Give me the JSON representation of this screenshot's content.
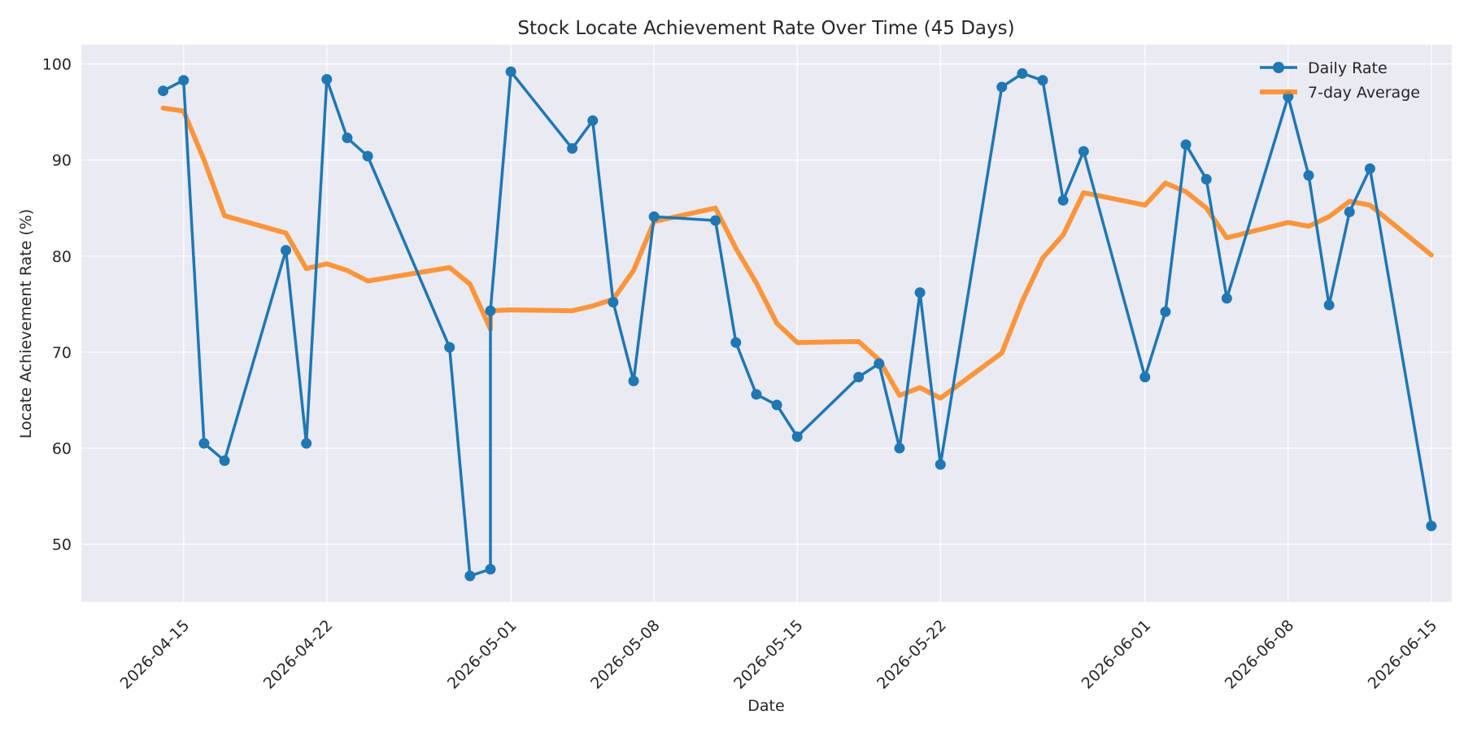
{
  "chart_data": {
    "type": "line",
    "title": "Stock Locate Achievement Rate Over Time (45 Days)",
    "xlabel": "Date",
    "ylabel": "Locate Achievement Rate (%)",
    "x_ticks": [
      "2026-04-15",
      "2026-04-22",
      "2026-05-01",
      "2026-05-08",
      "2026-05-15",
      "2026-05-22",
      "2026-06-01",
      "2026-06-08",
      "2026-06-15"
    ],
    "y_ticks": [
      50,
      60,
      70,
      80,
      90,
      100
    ],
    "xlim": [
      "2026-04-10",
      "2026-06-16"
    ],
    "ylim": [
      44,
      102
    ],
    "grid": true,
    "legend_position": "top-right",
    "dates": [
      "2026-04-14",
      "2026-04-15",
      "2026-04-16",
      "2026-04-17",
      "2026-04-20",
      "2026-04-21",
      "2026-04-22",
      "2026-04-23",
      "2026-04-24",
      "2026-04-28",
      "2026-04-29",
      "2026-04-30",
      "2026-04-30",
      "2026-05-01",
      "2026-05-04",
      "2026-05-05",
      "2026-05-06",
      "2026-05-07",
      "2026-05-08",
      "2026-05-11",
      "2026-05-12",
      "2026-05-13",
      "2026-05-14",
      "2026-05-15",
      "2026-05-18",
      "2026-05-19",
      "2026-05-20",
      "2026-05-21",
      "2026-05-22",
      "2026-05-25",
      "2026-05-26",
      "2026-05-27",
      "2026-05-28",
      "2026-05-29",
      "2026-06-01",
      "2026-06-02",
      "2026-06-03",
      "2026-06-04",
      "2026-06-05",
      "2026-06-08",
      "2026-06-09",
      "2026-06-10",
      "2026-06-11",
      "2026-06-12",
      "2026-06-15"
    ],
    "series": [
      {
        "name": "Daily Rate",
        "color": "#1f77b4",
        "marker": "circle",
        "values": [
          97.2,
          98.3,
          60.5,
          58.7,
          80.6,
          60.5,
          98.4,
          92.3,
          90.4,
          70.5,
          46.7,
          47.4,
          74.3,
          99.2,
          91.2,
          94.1,
          75.2,
          67.0,
          84.1,
          83.7,
          71.0,
          65.6,
          64.5,
          61.2,
          67.4,
          68.8,
          60.0,
          76.2,
          58.3,
          97.6,
          99.0,
          98.3,
          85.8,
          90.9,
          67.4,
          74.2,
          91.6,
          88.0,
          75.6,
          96.6,
          88.4,
          74.9,
          84.6,
          89.1,
          51.9
        ]
      },
      {
        "name": "7-day Average",
        "color": "#ff7f0e",
        "marker": "none",
        "values": [
          95.4,
          95.1,
          90.0,
          84.2,
          82.4,
          78.7,
          79.2,
          78.5,
          77.4,
          78.8,
          77.1,
          72.4,
          74.3,
          74.4,
          74.3,
          74.8,
          75.5,
          78.5,
          83.6,
          85.0,
          80.8,
          77.2,
          73.0,
          71.0,
          71.1,
          69.2,
          65.5,
          66.3,
          65.2,
          69.9,
          75.3,
          79.8,
          82.2,
          86.6,
          85.3,
          87.6,
          86.7,
          85.0,
          81.9,
          83.5,
          83.1,
          84.1,
          85.7,
          85.3,
          80.1
        ]
      }
    ]
  }
}
